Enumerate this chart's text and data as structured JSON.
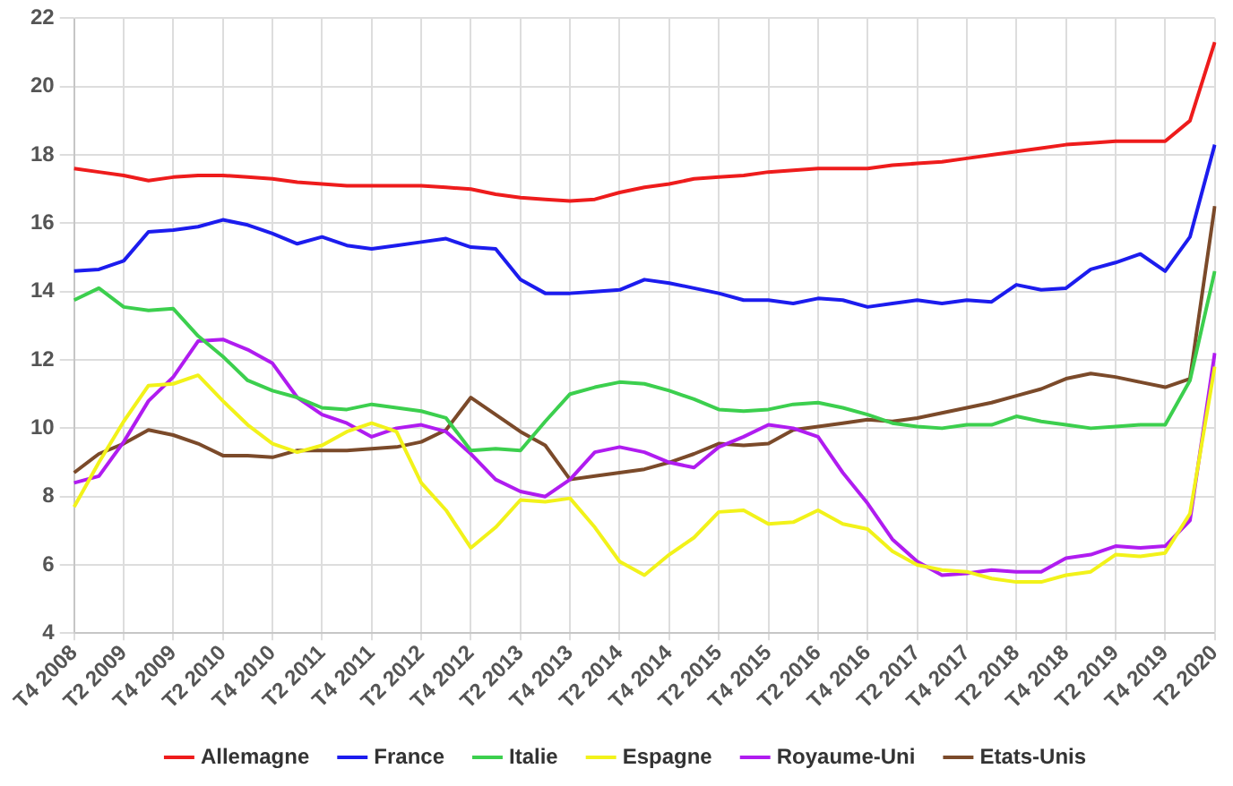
{
  "chart_data": {
    "type": "line",
    "categories": [
      "T4 2008",
      null,
      "T2 2009",
      null,
      "T4 2009",
      null,
      "T2 2010",
      null,
      "T4 2010",
      null,
      "T2 2011",
      null,
      "T4 2011",
      null,
      "T2 2012",
      null,
      "T4 2012",
      null,
      "T2 2013",
      null,
      "T4 2013",
      null,
      "T2 2014",
      null,
      "T4 2014",
      null,
      "T2 2015",
      null,
      "T4 2015",
      null,
      "T2 2016",
      null,
      "T4 2016",
      null,
      "T2 2017",
      null,
      "T4 2017",
      null,
      "T2 2018",
      null,
      "T4 2018",
      null,
      "T2 2019",
      null,
      "T4 2019",
      null,
      "T2 2020"
    ],
    "series": [
      {
        "name": "Allemagne",
        "color": "#ee1c1c",
        "values": [
          17.6,
          17.5,
          17.4,
          17.25,
          17.35,
          17.4,
          17.4,
          17.35,
          17.3,
          17.2,
          17.15,
          17.1,
          17.1,
          17.1,
          17.1,
          17.05,
          17.0,
          16.85,
          16.75,
          16.7,
          16.65,
          16.7,
          16.9,
          17.05,
          17.15,
          17.3,
          17.35,
          17.4,
          17.5,
          17.55,
          17.6,
          17.6,
          17.6,
          17.7,
          17.75,
          17.8,
          17.9,
          18.0,
          18.1,
          18.2,
          18.3,
          18.35,
          18.4,
          18.4,
          18.4,
          19.0,
          21.3
        ]
      },
      {
        "name": "France",
        "color": "#1c1cee",
        "values": [
          14.6,
          14.65,
          14.9,
          15.75,
          15.8,
          15.9,
          16.1,
          15.95,
          15.7,
          15.4,
          15.6,
          15.35,
          15.25,
          15.35,
          15.45,
          15.55,
          15.3,
          15.25,
          14.35,
          13.95,
          13.95,
          14.0,
          14.05,
          14.35,
          14.25,
          14.1,
          13.95,
          13.75,
          13.75,
          13.65,
          13.8,
          13.75,
          13.55,
          13.65,
          13.75,
          13.65,
          13.75,
          13.7,
          14.2,
          14.05,
          14.1,
          14.65,
          14.85,
          15.1,
          14.6,
          15.6,
          18.3
        ]
      },
      {
        "name": "Italie",
        "color": "#3ccf4e",
        "values": [
          13.75,
          14.1,
          13.55,
          13.45,
          13.5,
          12.7,
          12.1,
          11.4,
          11.1,
          10.9,
          10.6,
          10.55,
          10.7,
          10.6,
          10.5,
          10.3,
          9.35,
          9.4,
          9.35,
          10.2,
          11.0,
          11.2,
          11.35,
          11.3,
          11.1,
          10.85,
          10.55,
          10.5,
          10.55,
          10.7,
          10.75,
          10.6,
          10.4,
          10.15,
          10.05,
          10.0,
          10.1,
          10.1,
          10.35,
          10.2,
          10.1,
          10.0,
          10.05,
          10.1,
          10.1,
          11.4,
          14.6
        ]
      },
      {
        "name": "Espagne",
        "color": "#f2f21a",
        "values": [
          7.7,
          9.0,
          10.2,
          11.25,
          11.3,
          11.55,
          10.8,
          10.1,
          9.55,
          9.3,
          9.5,
          9.9,
          10.15,
          9.9,
          8.4,
          7.6,
          6.5,
          7.1,
          7.9,
          7.85,
          7.95,
          7.1,
          6.1,
          5.7,
          6.3,
          6.8,
          7.55,
          7.6,
          7.2,
          7.25,
          7.6,
          7.2,
          7.05,
          6.4,
          6.0,
          5.85,
          5.8,
          5.6,
          5.5,
          5.5,
          5.7,
          5.8,
          6.3,
          6.25,
          6.35,
          7.5,
          11.8
        ]
      },
      {
        "name": "Royaume-Uni",
        "color": "#b01cf0",
        "values": [
          8.4,
          8.6,
          9.6,
          10.8,
          11.5,
          12.55,
          12.6,
          12.3,
          11.9,
          10.9,
          10.4,
          10.15,
          9.75,
          10.0,
          10.1,
          9.9,
          9.25,
          8.5,
          8.15,
          8.0,
          8.5,
          9.3,
          9.45,
          9.3,
          9.0,
          8.85,
          9.45,
          9.75,
          10.1,
          10.0,
          9.75,
          8.7,
          7.8,
          6.75,
          6.1,
          5.7,
          5.75,
          5.85,
          5.8,
          5.8,
          6.2,
          6.3,
          6.55,
          6.5,
          6.55,
          7.3,
          12.2
        ]
      },
      {
        "name": "Etats-Unis",
        "color": "#7b4a2a",
        "values": [
          8.7,
          9.25,
          9.55,
          9.95,
          9.8,
          9.55,
          9.2,
          9.2,
          9.15,
          9.35,
          9.35,
          9.35,
          9.4,
          9.45,
          9.6,
          9.95,
          10.9,
          10.4,
          9.9,
          9.5,
          8.5,
          8.6,
          8.7,
          8.8,
          9.0,
          9.25,
          9.55,
          9.5,
          9.55,
          9.95,
          10.05,
          10.15,
          10.25,
          10.2,
          10.3,
          10.45,
          10.6,
          10.75,
          10.95,
          11.15,
          11.45,
          11.6,
          11.5,
          11.35,
          11.2,
          11.45,
          16.5
        ]
      }
    ],
    "ylim": [
      4,
      22
    ],
    "yticks": [
      4,
      6,
      8,
      10,
      12,
      14,
      16,
      18,
      20,
      22
    ],
    "grid": true,
    "legend": "bottom",
    "marker": "none",
    "line_style": "solid"
  }
}
